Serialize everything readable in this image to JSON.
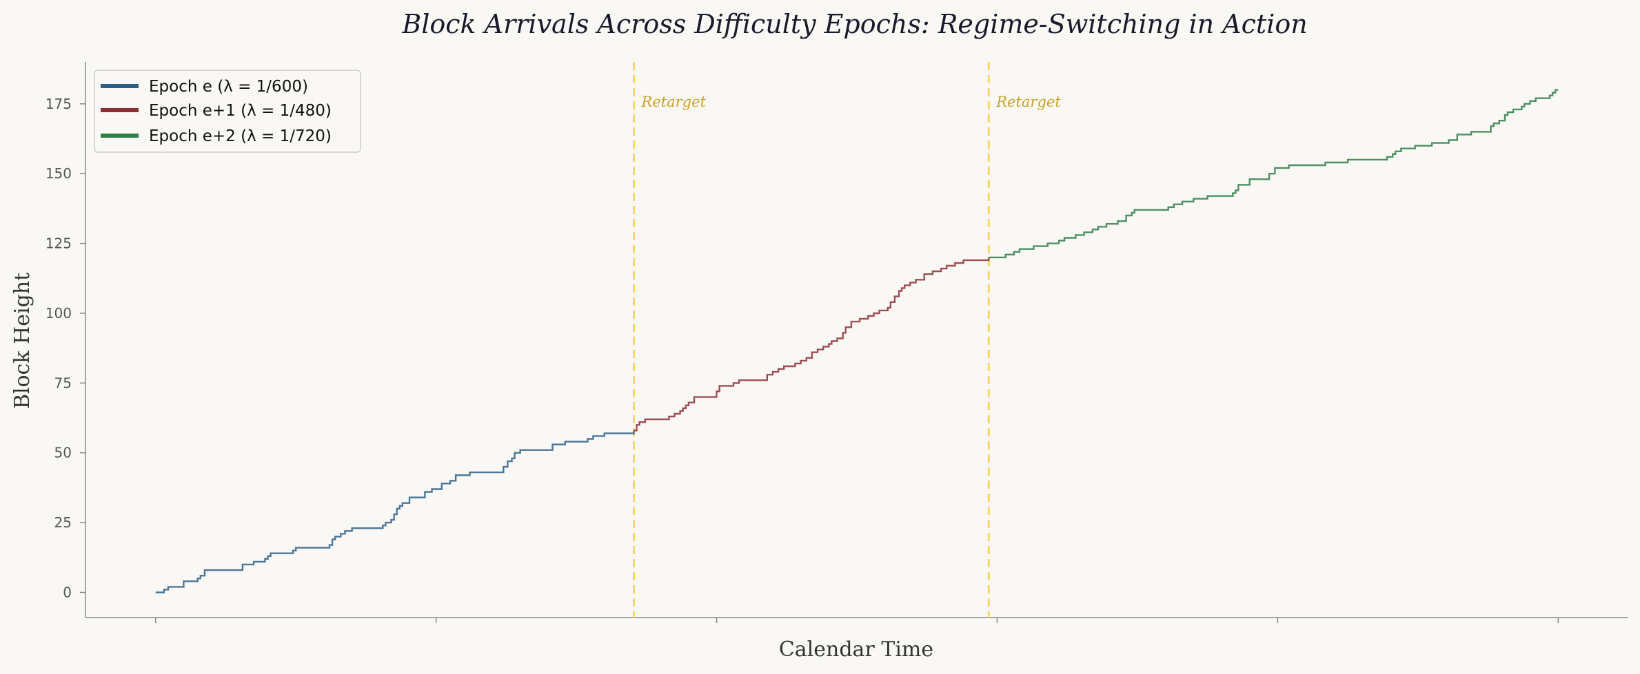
{
  "chart_data": {
    "type": "line",
    "step": true,
    "title": "Block Arrivals Across Difficulty Epochs: Regime-Switching in Action",
    "xlabel": "Calendar Time",
    "ylabel": "Block Height",
    "xlim": [
      -0.25,
      5.25
    ],
    "ylim": [
      -9,
      190
    ],
    "xticks": [
      0,
      1,
      2,
      3,
      4,
      5
    ],
    "yticks": [
      0,
      25,
      50,
      75,
      100,
      125,
      150,
      175
    ],
    "ytick_labels": [
      "0",
      "25",
      "50",
      "75",
      "100",
      "125",
      "150",
      "175"
    ],
    "grid": false,
    "legend_position": "top-left",
    "retarget_label": "Retarget",
    "retargets": [
      1.705,
      2.97
    ],
    "colors": {
      "retarget": "#f7d668",
      "retarget_text": "#c9a227",
      "axis": "#888888"
    },
    "series": [
      {
        "name": "Epoch e  (λ = 1/600)",
        "color": "#2b5f86",
        "x": [
          0,
          0.03,
          0.045,
          0.1,
          0.15,
          0.16,
          0.175,
          0.31,
          0.35,
          0.39,
          0.4,
          0.41,
          0.49,
          0.5,
          0.62,
          0.63,
          0.64,
          0.66,
          0.675,
          0.7,
          0.81,
          0.82,
          0.84,
          0.85,
          0.86,
          0.87,
          0.88,
          0.905,
          0.96,
          0.985,
          1.02,
          1.05,
          1.07,
          1.12,
          1.24,
          1.255,
          1.27,
          1.28,
          1.3,
          1.415,
          1.46,
          1.54,
          1.56,
          1.6,
          1.705
        ],
        "y": [
          0,
          1,
          2,
          4,
          5,
          6,
          8,
          10,
          11,
          12,
          13,
          14,
          15,
          16,
          17,
          19,
          20,
          21,
          22,
          23,
          24,
          25,
          26,
          28,
          30,
          31,
          32,
          34,
          36,
          37,
          39,
          40,
          42,
          43,
          45,
          47,
          48,
          50,
          51,
          53,
          54,
          55,
          56,
          57,
          58
        ]
      },
      {
        "name": "Epoch e+1  (λ = 1/480)",
        "color": "#8c2f35",
        "x": [
          1.705,
          1.715,
          1.725,
          1.745,
          1.83,
          1.85,
          1.87,
          1.88,
          1.89,
          1.9,
          1.92,
          2.0,
          2.01,
          2.06,
          2.08,
          2.18,
          2.2,
          2.22,
          2.24,
          2.28,
          2.3,
          2.32,
          2.34,
          2.36,
          2.38,
          2.4,
          2.41,
          2.43,
          2.45,
          2.46,
          2.48,
          2.51,
          2.54,
          2.56,
          2.58,
          2.61,
          2.62,
          2.635,
          2.65,
          2.66,
          2.67,
          2.69,
          2.71,
          2.74,
          2.77,
          2.8,
          2.82,
          2.85,
          2.88,
          2.97
        ],
        "y": [
          58,
          60,
          61,
          62,
          63,
          64,
          65,
          66,
          67,
          68,
          70,
          72,
          74,
          75,
          76,
          78,
          79,
          80,
          81,
          82,
          83,
          84,
          86,
          87,
          88,
          89,
          90,
          91,
          93,
          95,
          97,
          98,
          99,
          100,
          101,
          102,
          104,
          106,
          108,
          109,
          110,
          111,
          112,
          114,
          115,
          116,
          117,
          118,
          119,
          120
        ]
      },
      {
        "name": "Epoch e+2  (λ = 1/720)",
        "color": "#2f7d48",
        "x": [
          2.97,
          3.03,
          3.06,
          3.08,
          3.13,
          3.18,
          3.22,
          3.24,
          3.28,
          3.31,
          3.34,
          3.36,
          3.39,
          3.43,
          3.46,
          3.48,
          3.49,
          3.61,
          3.63,
          3.66,
          3.7,
          3.75,
          3.84,
          3.85,
          3.86,
          3.9,
          3.97,
          3.99,
          4.04,
          4.17,
          4.25,
          4.39,
          4.41,
          4.42,
          4.44,
          4.49,
          4.55,
          4.61,
          4.64,
          4.69,
          4.76,
          4.77,
          4.79,
          4.81,
          4.82,
          4.84,
          4.87,
          4.88,
          4.9,
          4.92,
          4.96,
          4.97,
          4.98,
          4.99,
          5.0
        ],
        "y": [
          120,
          121,
          122,
          123,
          124,
          125,
          126,
          127,
          128,
          129,
          130,
          131,
          132,
          133,
          135,
          136,
          137,
          138,
          139,
          140,
          141,
          142,
          143,
          144,
          146,
          148,
          150,
          152,
          153,
          154,
          155,
          156,
          157,
          158,
          159,
          160,
          161,
          162,
          164,
          165,
          167,
          168,
          169,
          171,
          172,
          173,
          174,
          175,
          176,
          177,
          177,
          178,
          179,
          180,
          180
        ]
      }
    ]
  }
}
